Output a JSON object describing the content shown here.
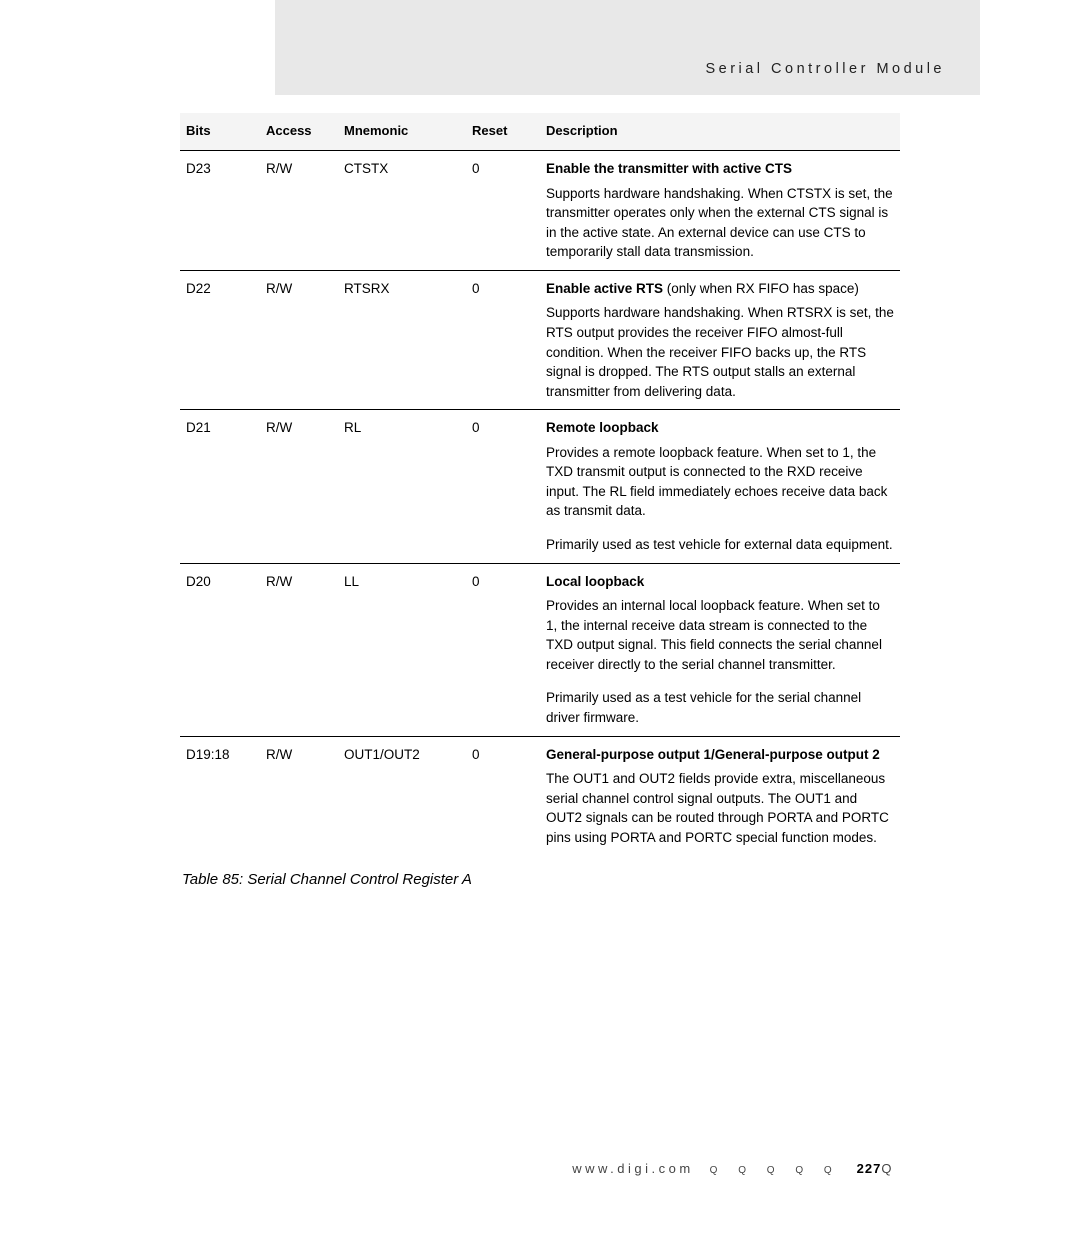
{
  "header": {
    "section_title": "Serial Controller Module"
  },
  "table": {
    "columns": [
      "Bits",
      "Access",
      "Mnemonic",
      "Reset",
      "Description"
    ],
    "rows": [
      {
        "bits": "D23",
        "access": "R/W",
        "mnemonic": "CTSTX",
        "reset": "0",
        "title": "Enable the transmitter with active CTS",
        "title_extra": "",
        "body": "Supports hardware handshaking. When CTSTX is set, the transmitter operates only when the external CTS signal is in the active state. An external device can use CTS to temporarily stall data transmission.",
        "body2": ""
      },
      {
        "bits": "D22",
        "access": "R/W",
        "mnemonic": "RTSRX",
        "reset": "0",
        "title": "Enable active RTS",
        "title_extra": " (only when RX FIFO has space)",
        "body": "Supports hardware handshaking. When RTSRX is set, the RTS output provides the receiver FIFO almost-full condition. When the receiver FIFO backs up, the RTS signal is dropped. The RTS output stalls an external transmitter from delivering data.",
        "body2": ""
      },
      {
        "bits": "D21",
        "access": "R/W",
        "mnemonic": "RL",
        "reset": "0",
        "title": "Remote loopback",
        "title_extra": "",
        "body": "Provides a remote loopback feature. When set to 1, the TXD transmit output is connected to the RXD receive input. The RL field immediately echoes receive data back as transmit data.",
        "body2": "Primarily used as test vehicle for external data equipment."
      },
      {
        "bits": "D20",
        "access": "R/W",
        "mnemonic": "LL",
        "reset": "0",
        "title": "Local loopback",
        "title_extra": "",
        "body": "Provides an internal local loopback feature. When set to 1, the internal receive data stream is connected to the TXD output signal. This field connects the serial channel receiver directly to the serial channel transmitter.",
        "body2": "Primarily used as a test vehicle for the serial channel driver firmware."
      },
      {
        "bits": "D19:18",
        "access": "R/W",
        "mnemonic": "OUT1/OUT2",
        "reset": "0",
        "title": "General-purpose output 1/General-purpose output 2",
        "title_extra": "",
        "body": "The OUT1 and OUT2 fields provide extra, miscellaneous serial channel control signal outputs. The OUT1 and OUT2 signals can be routed through PORTA and PORTC pins using PORTA and PORTC special function modes.",
        "body2": ""
      }
    ],
    "caption": "Table 85: Serial Channel Control Register A"
  },
  "footer": {
    "url": "www.digi.com",
    "marks": "Q Q Q Q Q",
    "page": "227",
    "tail": "Q"
  }
}
